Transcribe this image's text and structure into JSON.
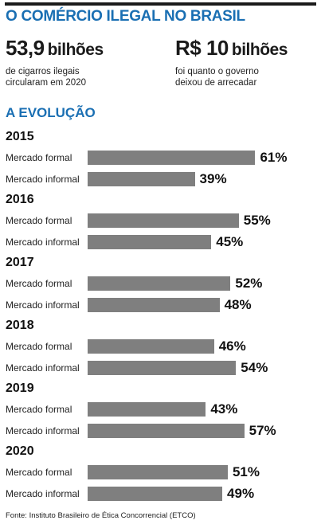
{
  "header": {
    "title": "O COMÉRCIO ILEGAL NO BRASIL"
  },
  "stats": [
    {
      "value": "53,9",
      "unit": "bilhões",
      "desc": [
        "de cigarros ilegais",
        "circularam em 2020"
      ]
    },
    {
      "value": "R$ 10",
      "unit": "bilhões",
      "desc": [
        "foi quanto o governo",
        "deixou de arrecadar"
      ]
    }
  ],
  "section_title": "A EVOLUÇÃO",
  "colors": {
    "accent": "#1a6fb3",
    "bar": "#7f7f7f"
  },
  "chart_data": {
    "type": "bar",
    "orientation": "horizontal",
    "unit": "%",
    "groups": [
      {
        "year": "2015",
        "rows": [
          {
            "label": "Mercado formal",
            "value": 61,
            "text": "61%"
          },
          {
            "label": "Mercado informal",
            "value": 39,
            "text": "39%"
          }
        ]
      },
      {
        "year": "2016",
        "rows": [
          {
            "label": "Mercado formal",
            "value": 55,
            "text": "55%"
          },
          {
            "label": "Mercado informal",
            "value": 45,
            "text": "45%"
          }
        ]
      },
      {
        "year": "2017",
        "rows": [
          {
            "label": "Mercado formal",
            "value": 52,
            "text": "52%"
          },
          {
            "label": "Mercado informal",
            "value": 48,
            "text": "48%"
          }
        ]
      },
      {
        "year": "2018",
        "rows": [
          {
            "label": "Mercado formal",
            "value": 46,
            "text": "46%"
          },
          {
            "label": "Mercado informal",
            "value": 54,
            "text": "54%"
          }
        ]
      },
      {
        "year": "2019",
        "rows": [
          {
            "label": "Mercado formal",
            "value": 43,
            "text": "43%"
          },
          {
            "label": "Mercado informal",
            "value": 57,
            "text": "57%"
          }
        ]
      },
      {
        "year": "2020",
        "rows": [
          {
            "label": "Mercado formal",
            "value": 51,
            "text": "51%"
          },
          {
            "label": "Mercado informal",
            "value": 49,
            "text": "49%"
          }
        ]
      }
    ]
  },
  "source": "Fonte: Instituto Brasileiro de Ética Concorrencial (ETCO)"
}
